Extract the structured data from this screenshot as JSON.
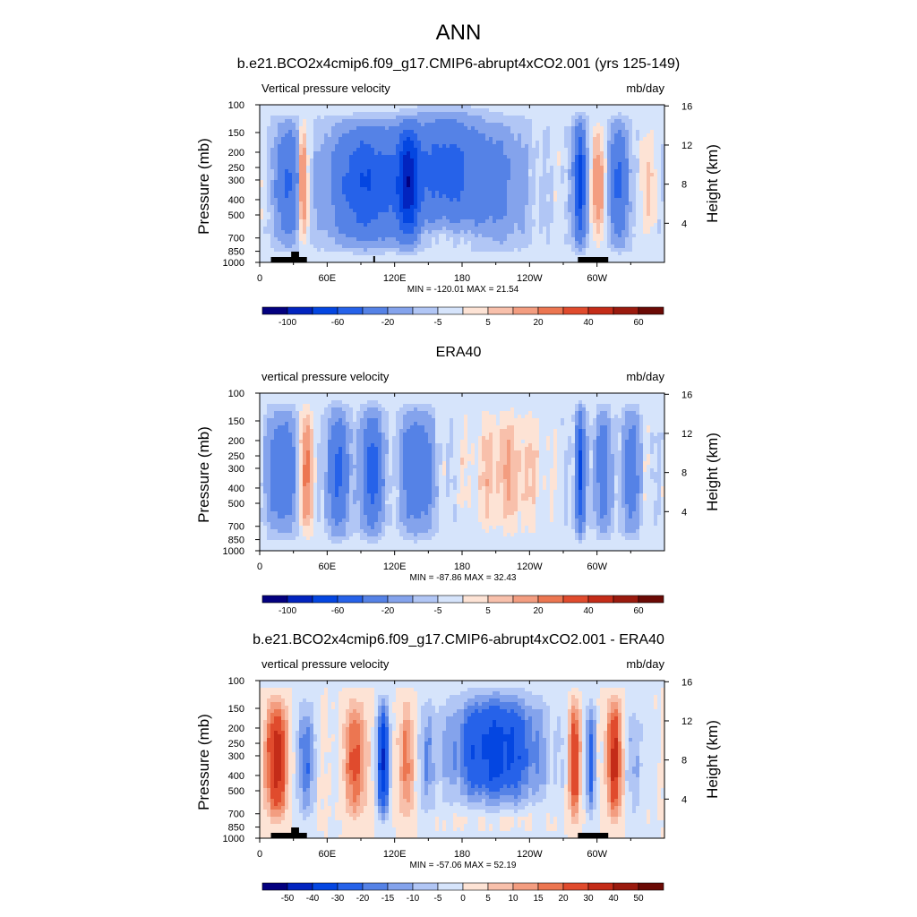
{
  "figure": {
    "title": "ANN"
  },
  "palettes": {
    "abs": [
      "#03007f",
      "#0224bf",
      "#0446e1",
      "#2662e9",
      "#5582e6",
      "#84a3ec",
      "#b1c6f5",
      "#d6e4fb",
      "#fde3d5",
      "#f8c0ab",
      "#f39d80",
      "#ec7651",
      "#e04b2d",
      "#c42c18",
      "#9a1a0e",
      "#6b0a05"
    ],
    "diff": [
      "#03007f",
      "#0224bf",
      "#0446e1",
      "#2662e9",
      "#5582e6",
      "#84a3ec",
      "#b1c6f5",
      "#d6e4fb",
      "#fde3d5",
      "#f8c0ab",
      "#f39d80",
      "#ec7651",
      "#e04b2d",
      "#c42c18",
      "#9a1a0e",
      "#6b0a05"
    ]
  },
  "chart_data": [
    {
      "type": "heatmap",
      "title": "b.e21.BCO2x4cmip6.f09_g17.CMIP6-abrupt4xCO2.001 (yrs 125-149)",
      "left_label": "Vertical pressure velocity",
      "right_label": "mb/day",
      "ylabel": "Pressure (mb)",
      "ylabel_right": "Height (km)",
      "x_ticks": [
        "0",
        "60E",
        "120E",
        "180",
        "120W",
        "60W"
      ],
      "y_ticks": [
        "100",
        "150",
        "200",
        "250",
        "300",
        "400",
        "500",
        "700",
        "850",
        "1000"
      ],
      "y_right_ticks": [
        "16",
        "12",
        "8",
        "4"
      ],
      "stats": "MIN = -120.01  MAX =  21.54",
      "colorbar_labels": [
        "-100",
        "-60",
        "-20",
        "-5",
        "5",
        "20",
        "40",
        "60"
      ],
      "palette": "abs",
      "field": "model"
    },
    {
      "type": "heatmap",
      "title": "ERA40",
      "left_label": "vertical pressure velocity",
      "right_label": "mb/day",
      "ylabel": "Pressure (mb)",
      "ylabel_right": "Height (km)",
      "x_ticks": [
        "0",
        "60E",
        "120E",
        "180",
        "120W",
        "60W"
      ],
      "y_ticks": [
        "100",
        "150",
        "200",
        "250",
        "300",
        "400",
        "500",
        "700",
        "850",
        "1000"
      ],
      "y_right_ticks": [
        "16",
        "12",
        "8",
        "4"
      ],
      "stats": "MIN = -87.86  MAX =  32.43",
      "colorbar_labels": [
        "-100",
        "-60",
        "-20",
        "-5",
        "5",
        "20",
        "40",
        "60"
      ],
      "palette": "abs",
      "field": "obs"
    },
    {
      "type": "heatmap",
      "title": "b.e21.BCO2x4cmip6.f09_g17.CMIP6-abrupt4xCO2.001 - ERA40",
      "left_label": "vertical pressure velocity",
      "right_label": "mb/day",
      "ylabel": "Pressure (mb)",
      "ylabel_right": "Height (km)",
      "x_ticks": [
        "0",
        "60E",
        "120E",
        "180",
        "120W",
        "60W"
      ],
      "y_ticks": [
        "100",
        "150",
        "200",
        "250",
        "300",
        "400",
        "500",
        "700",
        "850",
        "1000"
      ],
      "y_right_ticks": [
        "16",
        "12",
        "8",
        "4"
      ],
      "stats": "MIN = -57.06  MAX =  52.19",
      "colorbar_labels": [
        "-50",
        "-40",
        "-30",
        "-20",
        "-15",
        "-10",
        "-5",
        "0",
        "5",
        "10",
        "15",
        "20",
        "30",
        "40",
        "50"
      ],
      "palette": "diff",
      "field": "diff"
    }
  ]
}
